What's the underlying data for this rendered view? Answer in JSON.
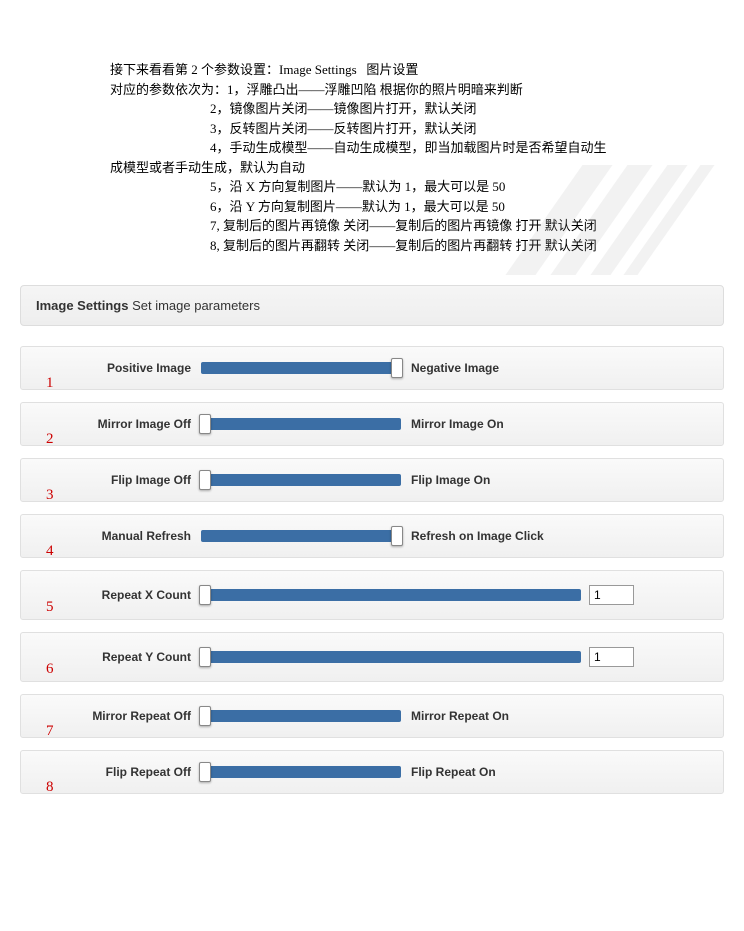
{
  "doc": {
    "line1": "接下来看看第 2 个参数设置：Image Settings   图片设置",
    "line2": "对应的参数依次为：1，浮雕凸出——浮雕凹陷 根据你的照片明暗来判断",
    "line3": "2，镜像图片关闭——镜像图片打开，默认关闭",
    "line4": "3，反转图片关闭——反转图片打开，默认关闭",
    "line5": "4，手动生成模型——自动生成模型，即当加载图片时是否希望自动生",
    "line6": "成模型或者手动生成，默认为自动",
    "line7": "5，沿 X 方向复制图片——默认为 1，最大可以是 50",
    "line8": "6，沿 Y 方向复制图片——默认为 1，最大可以是 50",
    "line9": "7, 复制后的图片再镜像 关闭——复制后的图片再镜像 打开 默认关闭",
    "line10": "8, 复制后的图片再翻转 关闭——复制后的图片再翻转 打开 默认关闭"
  },
  "panel": {
    "title_bold": "Image Settings",
    "title_rest": " Set image parameters"
  },
  "rows": [
    {
      "num": "1",
      "left": "Positive Image",
      "right": "Negative Image",
      "track_w": 200,
      "thumb_pos": "right",
      "has_input": false
    },
    {
      "num": "2",
      "left": "Mirror Image Off",
      "right": "Mirror Image On",
      "track_w": 200,
      "thumb_pos": "left",
      "has_input": false
    },
    {
      "num": "3",
      "left": "Flip Image Off",
      "right": "Flip Image On",
      "track_w": 200,
      "thumb_pos": "left",
      "has_input": false
    },
    {
      "num": "4",
      "left": "Manual Refresh",
      "right": "Refresh on Image Click",
      "track_w": 200,
      "thumb_pos": "right",
      "has_input": false
    },
    {
      "num": "5",
      "left": "Repeat X Count",
      "right": "",
      "track_w": 380,
      "thumb_pos": "left",
      "has_input": true,
      "input_val": "1"
    },
    {
      "num": "6",
      "left": "Repeat Y Count",
      "right": "",
      "track_w": 380,
      "thumb_pos": "left",
      "has_input": true,
      "input_val": "1"
    },
    {
      "num": "7",
      "left": "Mirror Repeat Off",
      "right": "Mirror Repeat On",
      "track_w": 200,
      "thumb_pos": "left",
      "has_input": false
    },
    {
      "num": "8",
      "left": "Flip Repeat Off",
      "right": "Flip Repeat On",
      "track_w": 200,
      "thumb_pos": "left",
      "has_input": false
    }
  ],
  "colors": {
    "track": "#3b6ea5",
    "number": "#cc0000"
  }
}
